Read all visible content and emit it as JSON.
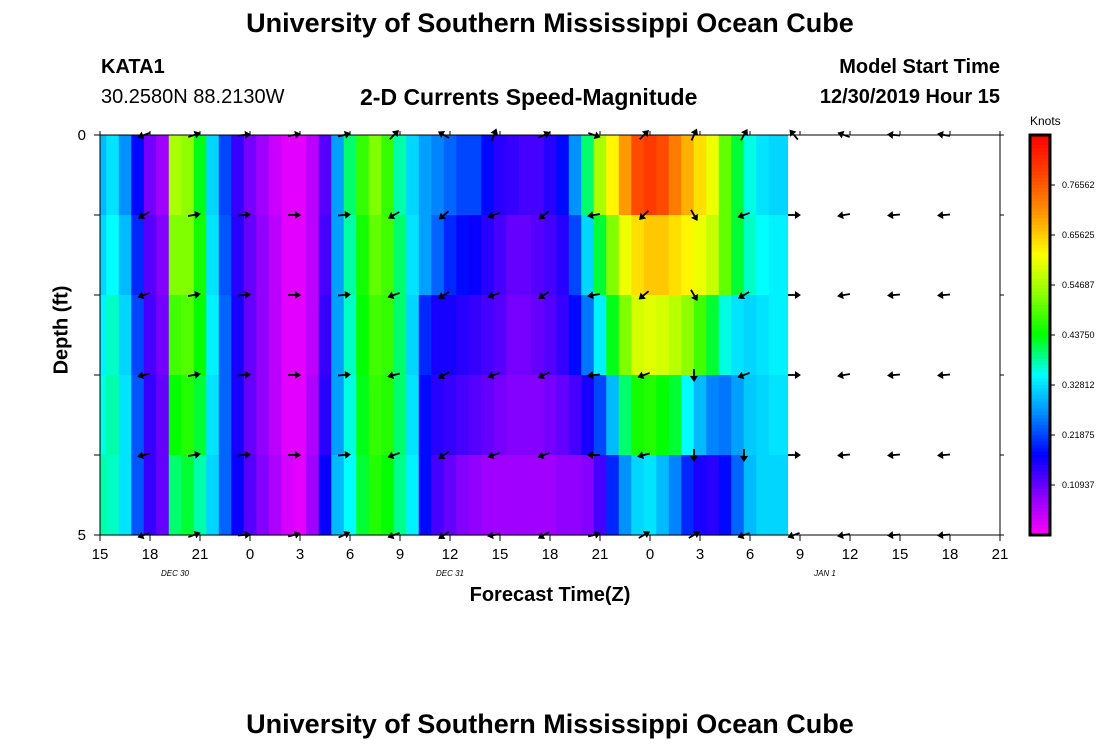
{
  "header": {
    "title": "University of Southern Mississippi Ocean Cube",
    "station": "KATA1",
    "coordinates": "30.2580N 88.2130W",
    "product": "2-D Currents Speed-Magnitude",
    "model_start_label": "Model Start Time",
    "model_start_value": "12/30/2019 Hour 15"
  },
  "footer": {
    "title": "University of Southern Mississippi Ocean Cube"
  },
  "chart_data": {
    "type": "heatmap",
    "title": "2-D Currents Speed-Magnitude",
    "xlabel": "Forecast Time(Z)",
    "ylabel": "Depth (ft)",
    "x_ticks": [
      "15",
      "18",
      "21",
      "0",
      "3",
      "6",
      "9",
      "12",
      "15",
      "18",
      "21",
      "0",
      "3",
      "6",
      "9",
      "12",
      "15",
      "18",
      "21"
    ],
    "date_labels": [
      {
        "label": "DEC 30",
        "tick": 1.5
      },
      {
        "label": "DEC 31",
        "tick": 7
      },
      {
        "label": "JAN 1",
        "tick": 14.5
      }
    ],
    "y_ticks": [
      {
        "depth": 0,
        "label": "0"
      },
      {
        "depth": 1,
        "label": ""
      },
      {
        "depth": 2,
        "label": ""
      },
      {
        "depth": 3,
        "label": ""
      },
      {
        "depth": 4,
        "label": ""
      },
      {
        "depth": 5,
        "label": "5"
      }
    ],
    "ylim": [
      0,
      5
    ],
    "units": "Knots",
    "colorbar": {
      "min": 0.0,
      "max": 0.875,
      "ticks": [
        "0.76562",
        "0.65625",
        "0.54687",
        "0.43750",
        "0.32812",
        "0.21875",
        "0.10937"
      ],
      "tick_values": [
        0.765625,
        0.65625,
        0.546875,
        0.4375,
        0.328125,
        0.21875,
        0.109375
      ],
      "colors": [
        "#ff00ff",
        "#8800ff",
        "#0000ff",
        "#0088ff",
        "#00ffff",
        "#00ff00",
        "#88ff00",
        "#ffff00",
        "#ff9900",
        "#ff4400",
        "#ff0000"
      ]
    },
    "time_steps": 55,
    "depth_rows": 5,
    "anchor_times": [
      0,
      1,
      2,
      3,
      4,
      5,
      6,
      7,
      8,
      9,
      10,
      11,
      12,
      13,
      14,
      15,
      16,
      17,
      18,
      19,
      20,
      21,
      22,
      23,
      24,
      25,
      26,
      27,
      28,
      29,
      30,
      31,
      32,
      33,
      34,
      35,
      36,
      37,
      38,
      39,
      40,
      41,
      42,
      43,
      44,
      45,
      46,
      47,
      48,
      49,
      50,
      51,
      52,
      53,
      54
    ],
    "speed_rows": [
      [
        0.38,
        0.33,
        0.27,
        0.22,
        0.17,
        0.13,
        0.07,
        0.04,
        0.06,
        0.12,
        0.28,
        0.41,
        0.52,
        0.55,
        0.53,
        0.48,
        0.41,
        0.34,
        0.28,
        0.22,
        0.17,
        0.12,
        0.08,
        0.05,
        0.04,
        0.03,
        0.03,
        0.03,
        0.05,
        0.11,
        0.22,
        0.33,
        0.42,
        0.47,
        0.5,
        0.53,
        0.5,
        0.46,
        0.39,
        0.33,
        0.27,
        0.22,
        0.18,
        0.15,
        0.13,
        0.12,
        0.11,
        0.11,
        0.11,
        0.11,
        0.12,
        0.15,
        0.23,
        0.33,
        0.42
      ],
      [
        0.38,
        0.33,
        0.27,
        0.22,
        0.17,
        0.13,
        0.07,
        0.04,
        0.06,
        0.12,
        0.28,
        0.41,
        0.52,
        0.55,
        0.53,
        0.48,
        0.41,
        0.34,
        0.28,
        0.22,
        0.17,
        0.12,
        0.08,
        0.05,
        0.04,
        0.03,
        0.03,
        0.03,
        0.05,
        0.11,
        0.22,
        0.33,
        0.42,
        0.47,
        0.5,
        0.53,
        0.5,
        0.46,
        0.39,
        0.33,
        0.27,
        0.22,
        0.18,
        0.15,
        0.13,
        0.12,
        0.11,
        0.11,
        0.11,
        0.11,
        0.12,
        0.15,
        0.23,
        0.33,
        0.42
      ],
      [
        0.38,
        0.33,
        0.27,
        0.22,
        0.17,
        0.13,
        0.07,
        0.04,
        0.06,
        0.12,
        0.28,
        0.41,
        0.52,
        0.55,
        0.53,
        0.48,
        0.41,
        0.34,
        0.28,
        0.22,
        0.17,
        0.12,
        0.08,
        0.05,
        0.04,
        0.03,
        0.03,
        0.03,
        0.05,
        0.11,
        0.22,
        0.33,
        0.42,
        0.47,
        0.5,
        0.53,
        0.5,
        0.46,
        0.39,
        0.33,
        0.27,
        0.22,
        0.18,
        0.15,
        0.13,
        0.12,
        0.11,
        0.11,
        0.11,
        0.11,
        0.12,
        0.15,
        0.23,
        0.33,
        0.42
      ],
      [
        0.38,
        0.33,
        0.27,
        0.22,
        0.17,
        0.13,
        0.07,
        0.04,
        0.06,
        0.12,
        0.28,
        0.41,
        0.52,
        0.55,
        0.53,
        0.48,
        0.41,
        0.34,
        0.28,
        0.22,
        0.17,
        0.12,
        0.08,
        0.05,
        0.04,
        0.03,
        0.03,
        0.03,
        0.05,
        0.11,
        0.22,
        0.33,
        0.42,
        0.47,
        0.5,
        0.53,
        0.5,
        0.46,
        0.39,
        0.33,
        0.27,
        0.22,
        0.18,
        0.15,
        0.13,
        0.12,
        0.11,
        0.11,
        0.11,
        0.11,
        0.12,
        0.15,
        0.23,
        0.33,
        0.42
      ],
      [
        0.38,
        0.33,
        0.27,
        0.22,
        0.17,
        0.13,
        0.07,
        0.04,
        0.06,
        0.12,
        0.28,
        0.41,
        0.52,
        0.55,
        0.53,
        0.48,
        0.41,
        0.34,
        0.28,
        0.22,
        0.17,
        0.12,
        0.08,
        0.05,
        0.04,
        0.03,
        0.03,
        0.03,
        0.05,
        0.11,
        0.22,
        0.33,
        0.42,
        0.47,
        0.5,
        0.53,
        0.5,
        0.46,
        0.39,
        0.33,
        0.27,
        0.22,
        0.18,
        0.15,
        0.13,
        0.12,
        0.11,
        0.11,
        0.11,
        0.11,
        0.12,
        0.15,
        0.23,
        0.33,
        0.42
      ]
    ],
    "speed_profile": {
      "anchors": [
        {
          "t": 0,
          "v": [
            0.3,
            0.32,
            0.34,
            0.36,
            0.38
          ]
        },
        {
          "t": 0.5,
          "v": [
            0.33,
            0.35,
            0.37,
            0.38,
            0.37
          ]
        },
        {
          "t": 1,
          "v": [
            0.27,
            0.3,
            0.32,
            0.33,
            0.33
          ]
        },
        {
          "t": 1.5,
          "v": [
            0.18,
            0.2,
            0.22,
            0.23,
            0.23
          ]
        },
        {
          "t": 2,
          "v": [
            0.1,
            0.12,
            0.13,
            0.14,
            0.14
          ]
        },
        {
          "t": 2.5,
          "v": [
            0.07,
            0.09,
            0.1,
            0.11,
            0.11
          ]
        },
        {
          "t": 3,
          "v": [
            0.55,
            0.52,
            0.48,
            0.44,
            0.4
          ]
        },
        {
          "t": 3.5,
          "v": [
            0.53,
            0.52,
            0.49,
            0.46,
            0.42
          ]
        },
        {
          "t": 4,
          "v": [
            0.43,
            0.45,
            0.44,
            0.42,
            0.38
          ]
        },
        {
          "t": 4.5,
          "v": [
            0.32,
            0.33,
            0.34,
            0.33,
            0.32
          ]
        },
        {
          "t": 5,
          "v": [
            0.22,
            0.23,
            0.24,
            0.24,
            0.24
          ]
        },
        {
          "t": 5.5,
          "v": [
            0.14,
            0.15,
            0.16,
            0.16,
            0.17
          ]
        },
        {
          "t": 6,
          "v": [
            0.1,
            0.11,
            0.11,
            0.11,
            0.12
          ]
        },
        {
          "t": 6.5,
          "v": [
            0.07,
            0.08,
            0.08,
            0.08,
            0.09
          ]
        },
        {
          "t": 7,
          "v": [
            0.04,
            0.05,
            0.05,
            0.05,
            0.06
          ]
        },
        {
          "t": 7.5,
          "v": [
            0.02,
            0.02,
            0.02,
            0.02,
            0.03
          ]
        },
        {
          "t": 8,
          "v": [
            0.02,
            0.02,
            0.02,
            0.02,
            0.02
          ]
        },
        {
          "t": 8.5,
          "v": [
            0.05,
            0.05,
            0.05,
            0.06,
            0.07
          ]
        },
        {
          "t": 9,
          "v": [
            0.12,
            0.13,
            0.14,
            0.15,
            0.17
          ]
        },
        {
          "t": 9.5,
          "v": [
            0.28,
            0.28,
            0.28,
            0.28,
            0.3
          ]
        },
        {
          "t": 10,
          "v": [
            0.4,
            0.38,
            0.37,
            0.36,
            0.35
          ]
        },
        {
          "t": 10.5,
          "v": [
            0.47,
            0.45,
            0.44,
            0.43,
            0.42
          ]
        },
        {
          "t": 11,
          "v": [
            0.52,
            0.5,
            0.48,
            0.47,
            0.46
          ]
        },
        {
          "t": 11.5,
          "v": [
            0.47,
            0.48,
            0.47,
            0.46,
            0.44
          ]
        },
        {
          "t": 12,
          "v": [
            0.38,
            0.4,
            0.4,
            0.4,
            0.39
          ]
        },
        {
          "t": 12.5,
          "v": [
            0.32,
            0.33,
            0.32,
            0.33,
            0.34
          ]
        },
        {
          "t": 13,
          "v": [
            0.28,
            0.28,
            0.2,
            0.18,
            0.18
          ]
        },
        {
          "t": 13.5,
          "v": [
            0.26,
            0.24,
            0.16,
            0.15,
            0.13
          ]
        },
        {
          "t": 14,
          "v": [
            0.24,
            0.2,
            0.16,
            0.14,
            0.11
          ]
        },
        {
          "t": 14.5,
          "v": [
            0.22,
            0.18,
            0.15,
            0.13,
            0.09
          ]
        },
        {
          "t": 15,
          "v": [
            0.22,
            0.17,
            0.14,
            0.12,
            0.08
          ]
        },
        {
          "t": 15.5,
          "v": [
            0.18,
            0.15,
            0.13,
            0.11,
            0.07
          ]
        },
        {
          "t": 16,
          "v": [
            0.15,
            0.13,
            0.12,
            0.1,
            0.07
          ]
        },
        {
          "t": 16.5,
          "v": [
            0.14,
            0.11,
            0.1,
            0.09,
            0.07
          ]
        },
        {
          "t": 17,
          "v": [
            0.13,
            0.11,
            0.1,
            0.09,
            0.07
          ]
        },
        {
          "t": 17.5,
          "v": [
            0.13,
            0.12,
            0.11,
            0.09,
            0.07
          ]
        },
        {
          "t": 18,
          "v": [
            0.15,
            0.13,
            0.12,
            0.1,
            0.07
          ]
        },
        {
          "t": 18.5,
          "v": [
            0.18,
            0.15,
            0.14,
            0.11,
            0.08
          ]
        },
        {
          "t": 19,
          "v": [
            0.27,
            0.22,
            0.18,
            0.13,
            0.08
          ]
        },
        {
          "t": 19.5,
          "v": [
            0.4,
            0.32,
            0.25,
            0.16,
            0.09
          ]
        },
        {
          "t": 20,
          "v": [
            0.55,
            0.42,
            0.34,
            0.22,
            0.13
          ]
        },
        {
          "t": 20.5,
          "v": [
            0.62,
            0.52,
            0.43,
            0.3,
            0.2
          ]
        },
        {
          "t": 21,
          "v": [
            0.7,
            0.6,
            0.52,
            0.4,
            0.27
          ]
        },
        {
          "t": 21.5,
          "v": [
            0.78,
            0.64,
            0.58,
            0.45,
            0.32
          ]
        },
        {
          "t": 22,
          "v": [
            0.8,
            0.66,
            0.59,
            0.46,
            0.33
          ]
        },
        {
          "t": 22.5,
          "v": [
            0.78,
            0.66,
            0.58,
            0.44,
            0.3
          ]
        },
        {
          "t": 23,
          "v": [
            0.73,
            0.64,
            0.56,
            0.42,
            0.26
          ]
        },
        {
          "t": 23.5,
          "v": [
            0.68,
            0.62,
            0.53,
            0.35,
            0.2
          ]
        },
        {
          "t": 24,
          "v": [
            0.64,
            0.6,
            0.48,
            0.3,
            0.16
          ]
        },
        {
          "t": 24.5,
          "v": [
            0.6,
            0.57,
            0.42,
            0.26,
            0.15
          ]
        },
        {
          "t": 25,
          "v": [
            0.5,
            0.5,
            0.36,
            0.25,
            0.18
          ]
        },
        {
          "t": 25.5,
          "v": [
            0.42,
            0.42,
            0.33,
            0.28,
            0.24
          ]
        },
        {
          "t": 26,
          "v": [
            0.36,
            0.37,
            0.32,
            0.31,
            0.3
          ]
        },
        {
          "t": 26.5,
          "v": [
            0.33,
            0.35,
            0.33,
            0.32,
            0.32
          ]
        },
        {
          "t": 27,
          "v": [
            0.32,
            0.34,
            0.34,
            0.33,
            0.32
          ]
        }
      ]
    },
    "vectors": {
      "time_ticks": [
        1,
        2,
        3,
        4,
        5,
        6,
        7,
        8,
        9,
        10,
        11,
        12,
        13,
        14,
        15,
        16,
        17
      ],
      "depths": [
        0,
        1,
        2,
        3,
        4,
        5
      ],
      "angles_deg": [
        [
          200,
          20,
          5,
          10,
          15,
          45,
          150,
          70,
          25,
          340,
          45,
          65,
          60,
          130,
          160,
          175,
          170
        ],
        [
          210,
          10,
          5,
          0,
          5,
          210,
          220,
          200,
          220,
          190,
          225,
          300,
          200,
          0,
          190,
          185,
          185
        ],
        [
          200,
          10,
          5,
          0,
          5,
          200,
          210,
          200,
          215,
          190,
          220,
          300,
          210,
          0,
          190,
          185,
          185
        ],
        [
          195,
          10,
          5,
          0,
          5,
          195,
          210,
          200,
          205,
          185,
          200,
          270,
          200,
          0,
          190,
          185,
          185
        ],
        [
          195,
          10,
          5,
          0,
          5,
          200,
          215,
          200,
          200,
          180,
          195,
          270,
          270,
          0,
          185,
          185,
          185
        ],
        [
          200,
          20,
          5,
          15,
          25,
          200,
          215,
          190,
          210,
          15,
          30,
          30,
          200,
          200,
          190,
          185,
          185
        ]
      ]
    }
  }
}
